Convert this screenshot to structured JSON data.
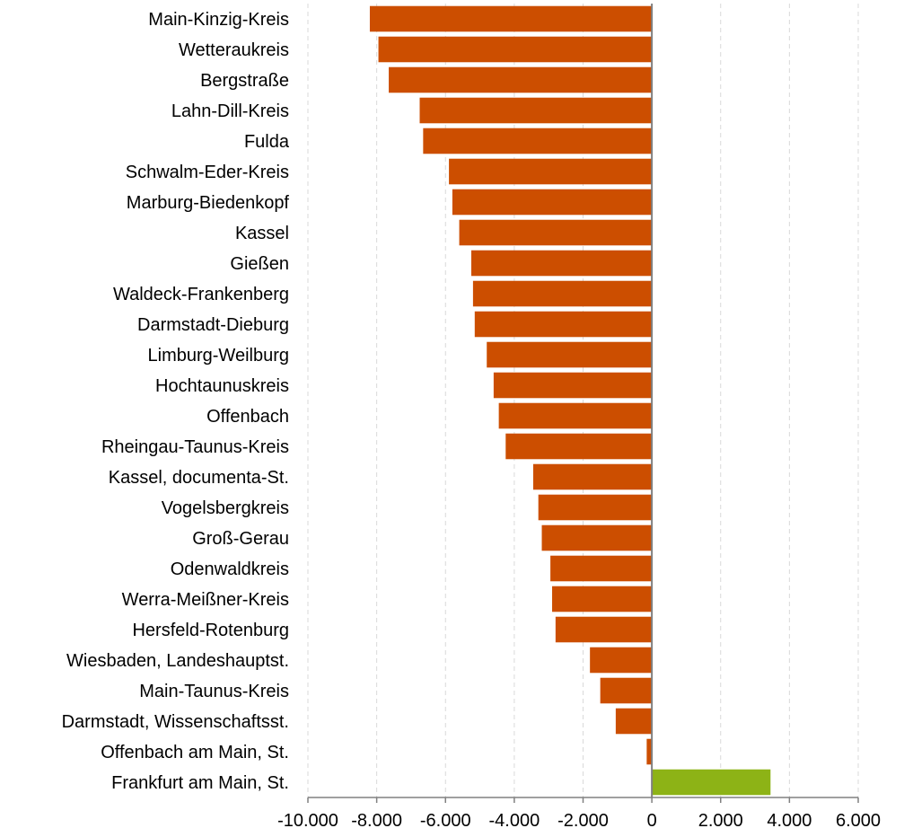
{
  "chart_data": {
    "type": "bar",
    "orientation": "horizontal",
    "categories": [
      "Main-Kinzig-Kreis",
      "Wetteraukreis",
      "Bergstraße",
      "Lahn-Dill-Kreis",
      "Fulda",
      "Schwalm-Eder-Kreis",
      "Marburg-Biedenkopf",
      "Kassel",
      "Gießen",
      "Waldeck-Frankenberg",
      "Darmstadt-Dieburg",
      "Limburg-Weilburg",
      "Hochtaunuskreis",
      "Offenbach",
      "Rheingau-Taunus-Kreis",
      "Kassel, documenta-St.",
      "Vogelsbergkreis",
      "Groß-Gerau",
      "Odenwaldkreis",
      "Werra-Meißner-Kreis",
      "Hersfeld-Rotenburg",
      "Wiesbaden, Landeshauptst.",
      "Main-Taunus-Kreis",
      "Darmstadt, Wissenschaftsst.",
      "Offenbach am Main, St.",
      "Frankfurt am Main, St."
    ],
    "values": [
      -8200,
      -7950,
      -7650,
      -6750,
      -6650,
      -5900,
      -5800,
      -5600,
      -5250,
      -5200,
      -5150,
      -4800,
      -4600,
      -4450,
      -4250,
      -3450,
      -3300,
      -3200,
      -2950,
      -2900,
      -2800,
      -1800,
      -1500,
      -1050,
      -150,
      3450
    ],
    "xlim": [
      -10000,
      6000
    ],
    "xticks": [
      -10000,
      -8000,
      -6000,
      -4000,
      -2000,
      0,
      2000,
      4000,
      6000
    ],
    "xtick_labels": [
      "-10.000",
      "-8.000",
      "-6.000",
      "-4.000",
      "-2.000",
      "0",
      "2.000",
      "4.000",
      "6.000"
    ],
    "grid": "vertical dashed",
    "colors": {
      "negative": "#cc4e00",
      "positive": "#8db316",
      "grid": "#d9d9d9",
      "axis": "#808080"
    },
    "title": "",
    "xlabel": "",
    "ylabel": ""
  }
}
